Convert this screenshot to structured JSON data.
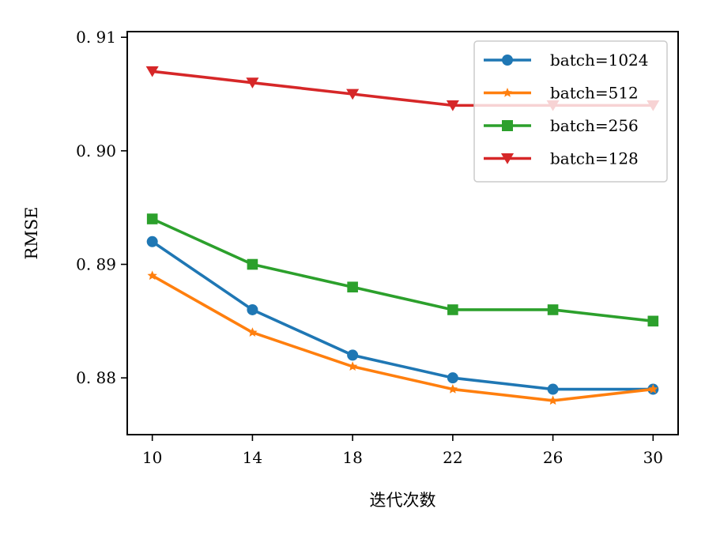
{
  "chart_data": {
    "type": "line",
    "xlabel": "迭代次数",
    "ylabel": "RMSE",
    "x": [
      10,
      14,
      18,
      22,
      26,
      30
    ],
    "x_tick_labels": [
      "10",
      "14",
      "18",
      "22",
      "26",
      "30"
    ],
    "y_ticks": [
      0.88,
      0.89,
      0.9,
      0.91
    ],
    "y_tick_labels": [
      "0. 88",
      "0. 89",
      "0. 90",
      "0. 91"
    ],
    "xlim": [
      9,
      31
    ],
    "ylim": [
      0.875,
      0.9105
    ],
    "grid": false,
    "legend_position": "top-right",
    "series": [
      {
        "name": "batch=1024",
        "color": "#1f77b4",
        "marker": "circle",
        "values": [
          0.892,
          0.886,
          0.882,
          0.88,
          0.879,
          0.879
        ]
      },
      {
        "name": "batch=512",
        "color": "#ff7f0e",
        "marker": "star",
        "values": [
          0.889,
          0.884,
          0.881,
          0.879,
          0.878,
          0.879
        ]
      },
      {
        "name": "batch=256",
        "color": "#2ca02c",
        "marker": "square",
        "values": [
          0.894,
          0.89,
          0.888,
          0.886,
          0.886,
          0.885
        ]
      },
      {
        "name": "batch=128",
        "color": "#d62728",
        "marker": "triangle-down",
        "values": [
          0.907,
          0.906,
          0.905,
          0.904,
          0.904,
          0.904
        ]
      }
    ]
  }
}
